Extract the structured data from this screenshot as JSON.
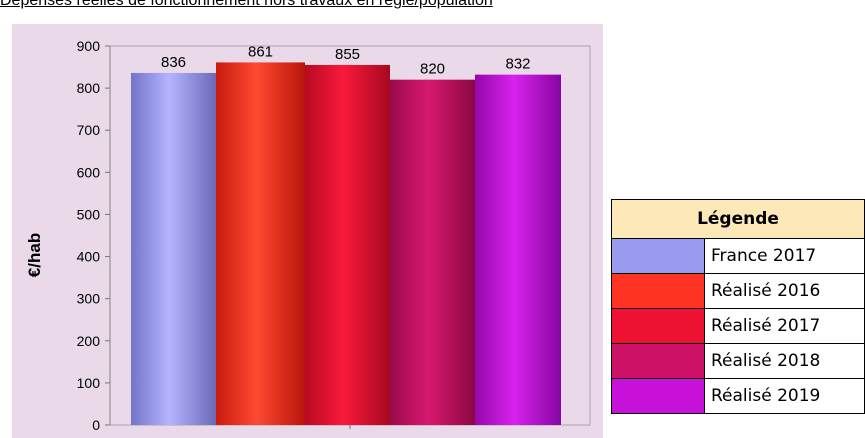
{
  "chart_data": {
    "type": "bar",
    "title": "Dépenses réelles de fonctionnement hors travaux en régie/population",
    "ylabel": "€/hab",
    "ylim": [
      0,
      900
    ],
    "yticks": [
      0,
      100,
      200,
      300,
      400,
      500,
      600,
      700,
      800,
      900
    ],
    "categories": [
      "France 2017",
      "Réalisé 2016",
      "Réalisé 2017",
      "Réalisé 2018",
      "Réalisé 2019"
    ],
    "values": [
      836,
      861,
      855,
      820,
      832
    ],
    "colors": [
      "#9a9aee",
      "#ff3322",
      "#ee1133",
      "#cc1166",
      "#c711d8"
    ],
    "legend_title": "Légende",
    "legend_position": "right"
  }
}
